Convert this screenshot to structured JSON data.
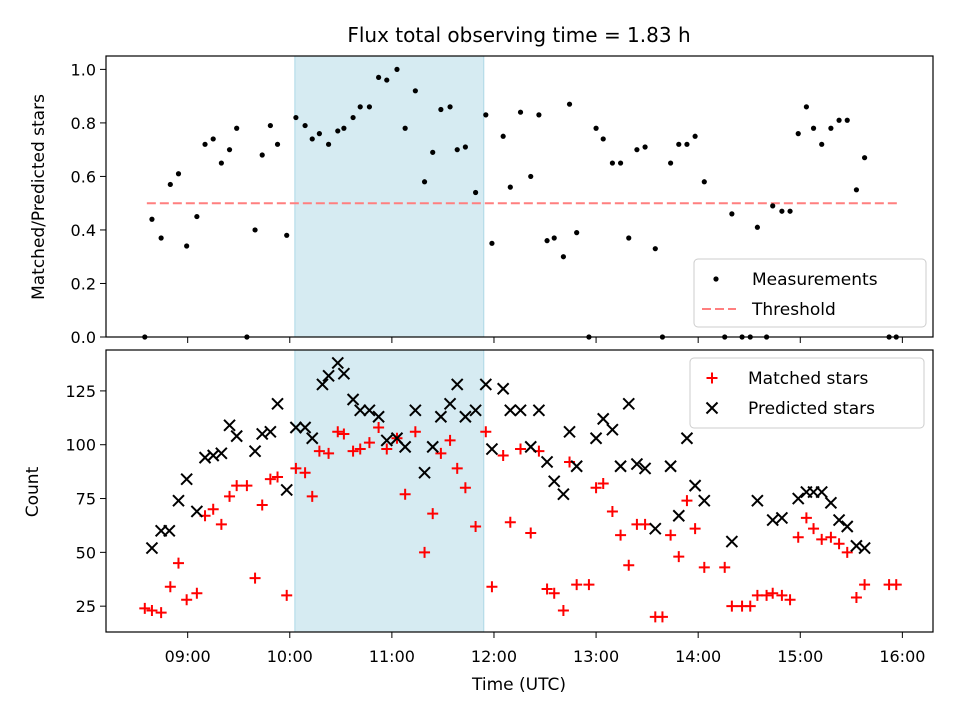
{
  "title": "Flux total observing time = 1.83 h",
  "colors": {
    "band": "#add8e6",
    "threshold": "#ff7f7f",
    "matched": "#ff0000",
    "predicted": "#000000",
    "measure": "#000000"
  },
  "chart_data": [
    {
      "type": "scatter",
      "title": "Flux total observing time = 1.83 h",
      "xlabel": "",
      "ylabel": "Matched/Predicted stars",
      "xlim": [
        8.2,
        16.3
      ],
      "ylim": [
        0,
        1.05
      ],
      "yticks": [
        "0.0",
        "0.2",
        "0.4",
        "0.6",
        "0.8",
        "1.0"
      ],
      "highlight_span_hours": [
        10.05,
        11.9
      ],
      "legend": {
        "position": "lower right",
        "entries": [
          "Measurements",
          "Threshold"
        ]
      },
      "threshold": {
        "name": "Threshold",
        "value": 0.5,
        "x": [
          8.6,
          15.95
        ]
      },
      "series": [
        {
          "name": "Measurements",
          "points": [
            [
              8.58,
              0.0
            ],
            [
              8.65,
              0.44
            ],
            [
              8.74,
              0.37
            ],
            [
              8.83,
              0.57
            ],
            [
              8.91,
              0.61
            ],
            [
              8.99,
              0.34
            ],
            [
              9.09,
              0.45
            ],
            [
              9.17,
              0.72
            ],
            [
              9.25,
              0.74
            ],
            [
              9.33,
              0.65
            ],
            [
              9.41,
              0.7
            ],
            [
              9.48,
              0.78
            ],
            [
              9.58,
              0.0
            ],
            [
              9.66,
              0.4
            ],
            [
              9.73,
              0.68
            ],
            [
              9.81,
              0.79
            ],
            [
              9.88,
              0.72
            ],
            [
              9.97,
              0.38
            ],
            [
              10.06,
              0.82
            ],
            [
              10.15,
              0.79
            ],
            [
              10.22,
              0.74
            ],
            [
              10.29,
              0.76
            ],
            [
              10.38,
              0.72
            ],
            [
              10.47,
              0.77
            ],
            [
              10.53,
              0.78
            ],
            [
              10.62,
              0.82
            ],
            [
              10.69,
              0.86
            ],
            [
              10.78,
              0.86
            ],
            [
              10.87,
              0.97
            ],
            [
              10.95,
              0.96
            ],
            [
              11.05,
              1.0
            ],
            [
              11.13,
              0.78
            ],
            [
              11.23,
              0.92
            ],
            [
              11.32,
              0.58
            ],
            [
              11.4,
              0.69
            ],
            [
              11.48,
              0.85
            ],
            [
              11.57,
              0.86
            ],
            [
              11.64,
              0.7
            ],
            [
              11.72,
              0.71
            ],
            [
              11.82,
              0.54
            ],
            [
              11.92,
              0.83
            ],
            [
              11.98,
              0.35
            ],
            [
              12.09,
              0.75
            ],
            [
              12.16,
              0.56
            ],
            [
              12.26,
              0.84
            ],
            [
              12.36,
              0.6
            ],
            [
              12.44,
              0.83
            ],
            [
              12.52,
              0.36
            ],
            [
              12.59,
              0.37
            ],
            [
              12.68,
              0.3
            ],
            [
              12.74,
              0.87
            ],
            [
              12.81,
              0.39
            ],
            [
              12.93,
              0.0
            ],
            [
              13.0,
              0.78
            ],
            [
              13.07,
              0.74
            ],
            [
              13.16,
              0.65
            ],
            [
              13.24,
              0.65
            ],
            [
              13.32,
              0.37
            ],
            [
              13.4,
              0.7
            ],
            [
              13.48,
              0.71
            ],
            [
              13.58,
              0.33
            ],
            [
              13.65,
              0.0
            ],
            [
              13.73,
              0.65
            ],
            [
              13.81,
              0.72
            ],
            [
              13.89,
              0.72
            ],
            [
              13.97,
              0.75
            ],
            [
              14.06,
              0.58
            ],
            [
              14.26,
              0.0
            ],
            [
              14.33,
              0.46
            ],
            [
              14.43,
              0.0
            ],
            [
              14.51,
              0.0
            ],
            [
              14.58,
              0.41
            ],
            [
              14.67,
              0.0
            ],
            [
              14.73,
              0.49
            ],
            [
              14.82,
              0.47
            ],
            [
              14.9,
              0.47
            ],
            [
              14.98,
              0.76
            ],
            [
              15.06,
              0.86
            ],
            [
              15.13,
              0.78
            ],
            [
              15.21,
              0.72
            ],
            [
              15.3,
              0.78
            ],
            [
              15.38,
              0.81
            ],
            [
              15.46,
              0.81
            ],
            [
              15.55,
              0.55
            ],
            [
              15.63,
              0.67
            ],
            [
              15.87,
              0.0
            ],
            [
              15.94,
              0.0
            ]
          ]
        }
      ]
    },
    {
      "type": "scatter",
      "title": "",
      "xlabel": "Time (UTC)",
      "ylabel": "Count",
      "xlim": [
        8.2,
        16.3
      ],
      "ylim": [
        13,
        144
      ],
      "yticks": [
        "25",
        "50",
        "75",
        "100",
        "125"
      ],
      "xticks": [
        "09:00",
        "10:00",
        "11:00",
        "12:00",
        "13:00",
        "14:00",
        "15:00",
        "16:00"
      ],
      "highlight_span_hours": [
        10.05,
        11.9
      ],
      "legend": {
        "position": "upper right",
        "entries": [
          "Matched stars",
          "Predicted stars"
        ]
      },
      "series": [
        {
          "name": "Matched stars",
          "marker": "+",
          "points": [
            [
              8.58,
              24
            ],
            [
              8.65,
              23
            ],
            [
              8.74,
              22
            ],
            [
              8.83,
              34
            ],
            [
              8.91,
              45
            ],
            [
              8.99,
              28
            ],
            [
              9.09,
              31
            ],
            [
              9.17,
              67
            ],
            [
              9.25,
              70
            ],
            [
              9.33,
              63
            ],
            [
              9.41,
              76
            ],
            [
              9.48,
              81
            ],
            [
              9.58,
              81
            ],
            [
              9.66,
              38
            ],
            [
              9.73,
              72
            ],
            [
              9.81,
              84
            ],
            [
              9.88,
              85
            ],
            [
              9.97,
              30
            ],
            [
              10.06,
              89
            ],
            [
              10.15,
              87
            ],
            [
              10.22,
              76
            ],
            [
              10.29,
              97
            ],
            [
              10.38,
              96
            ],
            [
              10.47,
              106
            ],
            [
              10.53,
              105
            ],
            [
              10.62,
              97
            ],
            [
              10.69,
              98
            ],
            [
              10.78,
              101
            ],
            [
              10.87,
              108
            ],
            [
              10.95,
              98
            ],
            [
              11.05,
              103
            ],
            [
              11.13,
              77
            ],
            [
              11.23,
              106
            ],
            [
              11.32,
              50
            ],
            [
              11.4,
              68
            ],
            [
              11.48,
              96
            ],
            [
              11.57,
              102
            ],
            [
              11.64,
              89
            ],
            [
              11.72,
              80
            ],
            [
              11.82,
              62
            ],
            [
              11.92,
              106
            ],
            [
              11.98,
              34
            ],
            [
              12.09,
              95
            ],
            [
              12.16,
              64
            ],
            [
              12.26,
              98
            ],
            [
              12.36,
              59
            ],
            [
              12.44,
              97
            ],
            [
              12.52,
              33
            ],
            [
              12.59,
              31
            ],
            [
              12.68,
              23
            ],
            [
              12.74,
              92
            ],
            [
              12.81,
              35
            ],
            [
              12.93,
              35
            ],
            [
              13.0,
              80
            ],
            [
              13.07,
              82
            ],
            [
              13.16,
              69
            ],
            [
              13.24,
              58
            ],
            [
              13.32,
              44
            ],
            [
              13.4,
              63
            ],
            [
              13.48,
              63
            ],
            [
              13.58,
              20
            ],
            [
              13.65,
              20
            ],
            [
              13.73,
              58
            ],
            [
              13.81,
              48
            ],
            [
              13.89,
              74
            ],
            [
              13.97,
              61
            ],
            [
              14.06,
              43
            ],
            [
              14.26,
              43
            ],
            [
              14.33,
              25
            ],
            [
              14.43,
              25
            ],
            [
              14.51,
              25
            ],
            [
              14.58,
              30
            ],
            [
              14.67,
              30
            ],
            [
              14.73,
              31
            ],
            [
              14.82,
              30
            ],
            [
              14.9,
              28
            ],
            [
              14.98,
              57
            ],
            [
              15.06,
              66
            ],
            [
              15.13,
              61
            ],
            [
              15.21,
              56
            ],
            [
              15.3,
              57
            ],
            [
              15.38,
              54
            ],
            [
              15.46,
              50
            ],
            [
              15.55,
              29
            ],
            [
              15.63,
              35
            ],
            [
              15.87,
              35
            ],
            [
              15.94,
              35
            ]
          ]
        },
        {
          "name": "Predicted stars",
          "marker": "x",
          "points": [
            [
              8.65,
              52
            ],
            [
              8.74,
              60
            ],
            [
              8.82,
              60
            ],
            [
              8.91,
              74
            ],
            [
              8.99,
              84
            ],
            [
              9.09,
              69
            ],
            [
              9.17,
              94
            ],
            [
              9.25,
              95
            ],
            [
              9.33,
              96
            ],
            [
              9.41,
              109
            ],
            [
              9.48,
              104
            ],
            [
              9.66,
              97
            ],
            [
              9.73,
              105
            ],
            [
              9.81,
              106
            ],
            [
              9.88,
              119
            ],
            [
              9.97,
              79
            ],
            [
              10.06,
              108
            ],
            [
              10.15,
              108
            ],
            [
              10.22,
              103
            ],
            [
              10.32,
              128
            ],
            [
              10.38,
              132
            ],
            [
              10.47,
              138
            ],
            [
              10.53,
              133
            ],
            [
              10.62,
              121
            ],
            [
              10.69,
              116
            ],
            [
              10.78,
              116
            ],
            [
              10.87,
              113
            ],
            [
              10.95,
              102
            ],
            [
              11.05,
              103
            ],
            [
              11.13,
              99
            ],
            [
              11.23,
              116
            ],
            [
              11.32,
              87
            ],
            [
              11.4,
              99
            ],
            [
              11.48,
              113
            ],
            [
              11.57,
              119
            ],
            [
              11.64,
              128
            ],
            [
              11.72,
              113
            ],
            [
              11.82,
              116
            ],
            [
              11.92,
              128
            ],
            [
              11.98,
              98
            ],
            [
              12.09,
              126
            ],
            [
              12.16,
              116
            ],
            [
              12.26,
              116
            ],
            [
              12.36,
              99
            ],
            [
              12.44,
              116
            ],
            [
              12.52,
              92
            ],
            [
              12.59,
              83
            ],
            [
              12.68,
              77
            ],
            [
              12.74,
              106
            ],
            [
              12.81,
              90
            ],
            [
              13.0,
              103
            ],
            [
              13.07,
              112
            ],
            [
              13.16,
              107
            ],
            [
              13.24,
              90
            ],
            [
              13.32,
              119
            ],
            [
              13.4,
              91
            ],
            [
              13.48,
              89
            ],
            [
              13.58,
              61
            ],
            [
              13.73,
              90
            ],
            [
              13.81,
              67
            ],
            [
              13.89,
              103
            ],
            [
              13.97,
              81
            ],
            [
              14.06,
              74
            ],
            [
              14.33,
              55
            ],
            [
              14.58,
              74
            ],
            [
              14.73,
              65
            ],
            [
              14.82,
              66
            ],
            [
              14.98,
              75
            ],
            [
              15.06,
              78
            ],
            [
              15.13,
              78
            ],
            [
              15.21,
              78
            ],
            [
              15.3,
              73
            ],
            [
              15.38,
              65
            ],
            [
              15.46,
              62
            ],
            [
              15.55,
              53
            ],
            [
              15.63,
              52
            ]
          ]
        }
      ]
    }
  ]
}
